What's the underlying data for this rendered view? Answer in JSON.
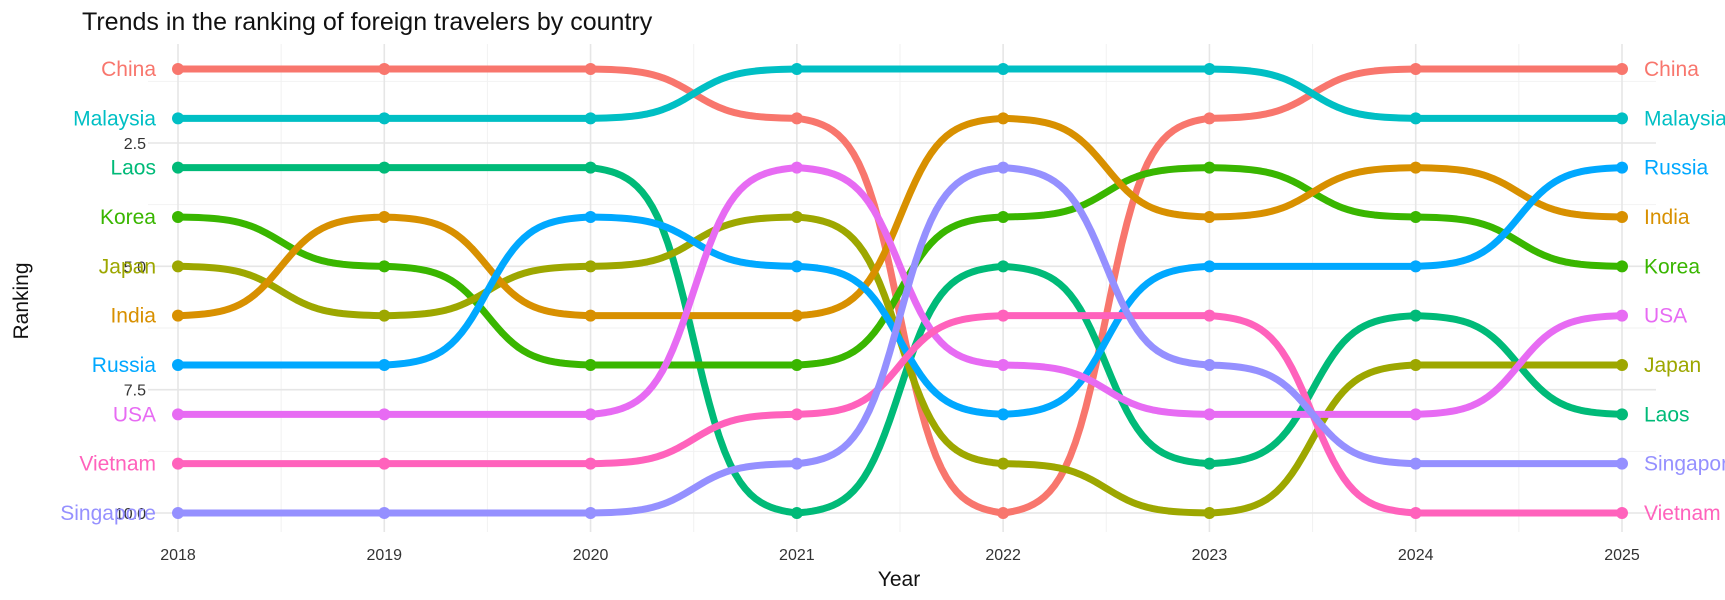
{
  "chart_data": {
    "type": "line",
    "title": "Trends in the ranking of foreign travelers by country",
    "xlabel": "Year",
    "ylabel": "Ranking",
    "x": [
      2018,
      2019,
      2020,
      2021,
      2022,
      2023,
      2024,
      2025
    ],
    "x_tick_labels": [
      "2018",
      "2019",
      "2020",
      "2021",
      "2022",
      "2023",
      "2024",
      "2025"
    ],
    "y_tick_values": [
      2.5,
      5.0,
      7.5,
      10.0
    ],
    "y_tick_labels": [
      "2.5",
      "5.0",
      "7.5",
      "10.0"
    ],
    "ylim": [
      1,
      10
    ],
    "y_reversed": true,
    "grid": true,
    "legend": "none (direct labels at both ends)",
    "series": [
      {
        "name": "China",
        "color": "#F8766D",
        "values": [
          1,
          1,
          1,
          2,
          10,
          2,
          1,
          1
        ]
      },
      {
        "name": "Malaysia",
        "color": "#00BFC4",
        "values": [
          2,
          2,
          2,
          1,
          1,
          1,
          2,
          2
        ]
      },
      {
        "name": "Laos",
        "color": "#00BA78",
        "values": [
          3,
          3,
          3,
          10,
          5,
          9,
          6,
          8
        ]
      },
      {
        "name": "Korea",
        "color": "#39B600",
        "values": [
          4,
          5,
          7,
          7,
          4,
          3,
          4,
          5
        ]
      },
      {
        "name": "Japan",
        "color": "#9DA700",
        "values": [
          5,
          6,
          5,
          4,
          9,
          10,
          7,
          7
        ]
      },
      {
        "name": "India",
        "color": "#D89000",
        "values": [
          6,
          4,
          6,
          6,
          2,
          4,
          3,
          4
        ]
      },
      {
        "name": "Russia",
        "color": "#00A8FF",
        "values": [
          7,
          7,
          4,
          5,
          8,
          5,
          5,
          3
        ]
      },
      {
        "name": "USA",
        "color": "#E76BF3",
        "values": [
          8,
          8,
          8,
          3,
          7,
          8,
          8,
          6
        ]
      },
      {
        "name": "Vietnam",
        "color": "#FF62BC",
        "values": [
          9,
          9,
          9,
          8,
          6,
          6,
          10,
          10
        ]
      },
      {
        "name": "Singapore",
        "color": "#9590FF",
        "values": [
          10,
          10,
          10,
          9,
          3,
          7,
          9,
          9
        ]
      }
    ]
  }
}
